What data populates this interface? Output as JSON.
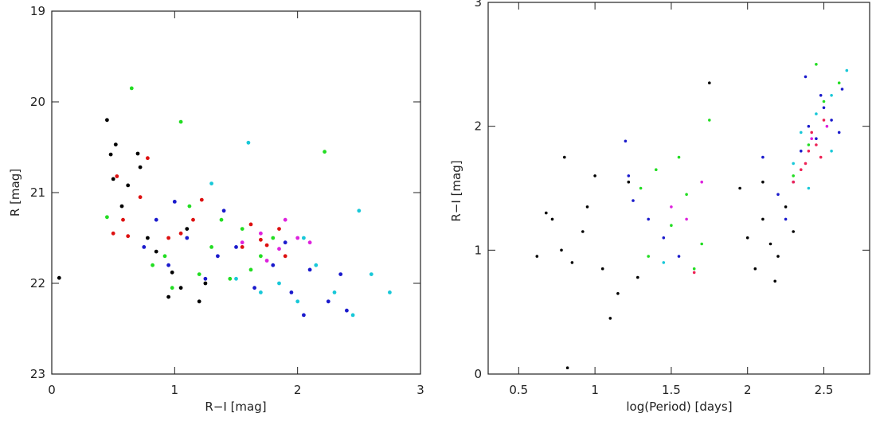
{
  "chart_data": [
    {
      "type": "scatter",
      "title": "",
      "xlabel": "R−I [mag]",
      "ylabel": "R [mag]",
      "xlim": [
        0,
        3
      ],
      "ylim": [
        23,
        19
      ],
      "y_inverted": true,
      "grid": false,
      "x_ticks": [
        0,
        1,
        2,
        3
      ],
      "x_tick_labels": [
        "0",
        "1",
        "2",
        "3"
      ],
      "y_ticks": [
        19,
        20,
        21,
        22,
        23
      ],
      "y_tick_labels": [
        "19",
        "20",
        "21",
        "22",
        "23"
      ],
      "series": [
        {
          "color": "#000000",
          "x": [
            0.06,
            0.45,
            0.48,
            0.5,
            0.52,
            0.57,
            0.62,
            0.7,
            0.72,
            0.78,
            0.85,
            0.95,
            1.05,
            1.1,
            1.2,
            0.98,
            1.25
          ],
          "y": [
            21.94,
            20.2,
            20.58,
            20.85,
            20.47,
            21.15,
            20.92,
            20.57,
            20.72,
            21.5,
            21.65,
            22.15,
            22.05,
            21.4,
            22.2,
            21.88,
            22.0
          ]
        },
        {
          "color": "#dd1010",
          "x": [
            0.5,
            0.53,
            0.58,
            0.62,
            0.72,
            0.78,
            0.95,
            1.05,
            1.15,
            1.22,
            1.55,
            1.7,
            1.85,
            1.9,
            1.62,
            1.75
          ],
          "y": [
            21.45,
            20.82,
            21.3,
            21.48,
            21.05,
            20.62,
            21.5,
            21.45,
            21.3,
            21.08,
            21.6,
            21.52,
            21.4,
            21.7,
            21.35,
            21.58
          ]
        },
        {
          "color": "#22dd22",
          "x": [
            0.45,
            0.65,
            0.82,
            0.92,
            1.05,
            1.2,
            1.3,
            1.45,
            1.55,
            1.7,
            0.98,
            1.12,
            1.38,
            1.62,
            1.8,
            2.22
          ],
          "y": [
            21.27,
            19.85,
            21.8,
            21.7,
            20.22,
            21.9,
            21.6,
            21.95,
            21.4,
            21.7,
            22.05,
            21.15,
            21.3,
            21.85,
            21.5,
            20.55
          ]
        },
        {
          "color": "#1a1acc",
          "x": [
            0.75,
            0.85,
            0.95,
            1.1,
            1.25,
            1.35,
            1.5,
            1.65,
            1.8,
            1.95,
            2.1,
            2.25,
            2.4,
            1.0,
            1.4,
            1.9,
            2.05,
            2.35
          ],
          "y": [
            21.6,
            21.3,
            21.8,
            21.5,
            21.95,
            21.7,
            21.6,
            22.05,
            21.8,
            22.1,
            21.85,
            22.2,
            22.3,
            21.1,
            21.2,
            21.55,
            22.35,
            21.9
          ]
        },
        {
          "color": "#18c8d8",
          "x": [
            1.3,
            1.5,
            1.7,
            1.85,
            2.0,
            2.15,
            2.3,
            2.45,
            2.6,
            2.75,
            1.6,
            2.05,
            2.5
          ],
          "y": [
            20.9,
            21.95,
            22.1,
            22.0,
            22.2,
            21.8,
            22.1,
            22.35,
            21.9,
            22.1,
            20.45,
            21.5,
            21.2
          ]
        },
        {
          "color": "#dd22dd",
          "x": [
            1.55,
            1.7,
            1.85,
            1.9,
            2.0,
            1.75,
            2.1
          ],
          "y": [
            21.55,
            21.45,
            21.62,
            21.3,
            21.5,
            21.75,
            21.55
          ]
        }
      ]
    },
    {
      "type": "scatter",
      "title": "",
      "xlabel": "log(Period) [days]",
      "ylabel": "R−I [mag]",
      "xlim": [
        0.3,
        2.8
      ],
      "ylim": [
        0,
        3
      ],
      "grid": false,
      "x_ticks": [
        0.5,
        1,
        1.5,
        2,
        2.5
      ],
      "x_tick_labels": [
        "0.5",
        "1",
        "1.5",
        "2",
        "2.5"
      ],
      "y_ticks": [
        0,
        1,
        2,
        3
      ],
      "y_tick_labels": [
        "0",
        "1",
        "2",
        "3"
      ],
      "series": [
        {
          "color": "#000000",
          "x": [
            0.62,
            0.68,
            0.72,
            0.78,
            0.8,
            0.85,
            0.92,
            0.95,
            1.0,
            1.05,
            1.1,
            1.15,
            1.22,
            1.28,
            0.82,
            1.75,
            1.95,
            2.0,
            2.05,
            2.1,
            2.15,
            2.2,
            2.25,
            2.1,
            2.18,
            2.3
          ],
          "y": [
            0.95,
            1.3,
            1.25,
            1.0,
            1.75,
            0.9,
            1.15,
            1.35,
            1.6,
            0.85,
            0.45,
            0.65,
            1.55,
            0.78,
            0.05,
            2.35,
            1.5,
            1.1,
            0.85,
            1.25,
            1.05,
            0.95,
            1.35,
            1.55,
            0.75,
            1.15
          ]
        },
        {
          "color": "#1a1acc",
          "x": [
            1.2,
            1.22,
            1.25,
            1.35,
            1.45,
            1.55,
            2.1,
            2.2,
            2.3,
            2.35,
            2.4,
            2.45,
            2.5,
            2.55,
            2.6,
            2.25,
            2.38,
            2.48,
            2.62
          ],
          "y": [
            1.88,
            1.6,
            1.4,
            1.25,
            1.1,
            0.95,
            1.75,
            1.45,
            1.55,
            1.8,
            2.0,
            1.9,
            2.15,
            2.05,
            1.95,
            1.25,
            2.4,
            2.25,
            2.3
          ]
        },
        {
          "color": "#22dd22",
          "x": [
            1.3,
            1.4,
            1.5,
            1.6,
            1.7,
            1.75,
            1.35,
            1.55,
            1.65,
            2.3,
            2.4,
            2.5,
            2.6,
            2.45
          ],
          "y": [
            1.5,
            1.65,
            1.2,
            1.45,
            1.05,
            2.05,
            0.95,
            1.75,
            0.85,
            1.6,
            1.85,
            2.2,
            2.35,
            2.5
          ]
        },
        {
          "color": "#18c8d8",
          "x": [
            1.45,
            2.3,
            2.35,
            2.45,
            2.55,
            2.65,
            2.4,
            2.55
          ],
          "y": [
            0.9,
            1.7,
            1.95,
            2.1,
            2.25,
            2.45,
            1.5,
            1.8
          ]
        },
        {
          "color": "#ee2255",
          "x": [
            2.3,
            2.35,
            2.4,
            2.42,
            2.45,
            2.5,
            2.38,
            2.48,
            1.65
          ],
          "y": [
            1.55,
            1.65,
            1.8,
            1.95,
            1.85,
            2.05,
            1.7,
            1.75,
            0.82
          ]
        },
        {
          "color": "#dd22dd",
          "x": [
            1.5,
            1.6,
            1.7,
            2.42,
            2.52
          ],
          "y": [
            1.35,
            1.25,
            1.55,
            1.9,
            2.0
          ]
        }
      ]
    }
  ]
}
